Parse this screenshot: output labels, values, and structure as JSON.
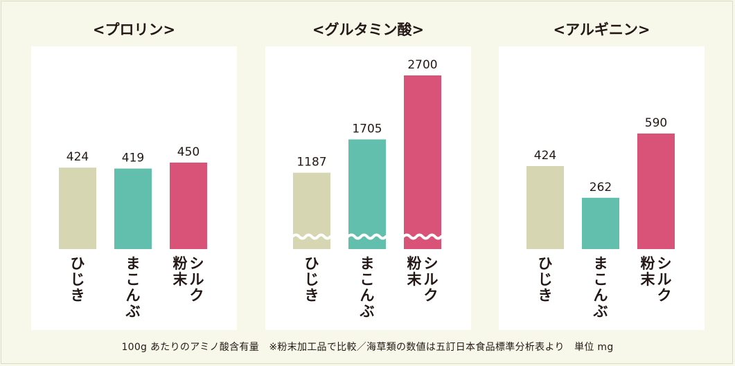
{
  "colors": {
    "background": "#f7f8ea",
    "panel": "#ffffff",
    "hijiki": "#d6d6b2",
    "makonbu": "#62bfad",
    "powder_silk": "#d95277"
  },
  "footnote": "100g あたりのアミノ酸含有量　※粉末加工品で比較／海草類の数値は五訂日本食品標準分析表より　単位 mg",
  "chart_data": [
    {
      "type": "bar",
      "title": "<プロリン>",
      "categories": [
        "ひじき",
        "まこんぶ",
        "粉末シルク"
      ],
      "category_lines": [
        [
          "ひじき"
        ],
        [
          "まこんぶ"
        ],
        [
          "シルク",
          "粉末"
        ]
      ],
      "values": [
        424,
        419,
        450
      ],
      "value_labels": [
        "424",
        "419",
        "450"
      ],
      "colors": [
        "#d6d6b2",
        "#62bfad",
        "#d95277"
      ],
      "axis_break": false
    },
    {
      "type": "bar",
      "title": "<グルタミン酸>",
      "categories": [
        "ひじき",
        "まこんぶ",
        "粉末シルク"
      ],
      "category_lines": [
        [
          "ひじき"
        ],
        [
          "まこんぶ"
        ],
        [
          "シルク",
          "粉末"
        ]
      ],
      "values": [
        1187,
        1705,
        2700
      ],
      "value_labels": [
        "1187",
        "1705",
        "2700"
      ],
      "colors": [
        "#d6d6b2",
        "#62bfad",
        "#d95277"
      ],
      "axis_break": true
    },
    {
      "type": "bar",
      "title": "<アルギニン>",
      "categories": [
        "ひじき",
        "まこんぶ",
        "粉末シルク"
      ],
      "category_lines": [
        [
          "ひじき"
        ],
        [
          "まこんぶ"
        ],
        [
          "シルク",
          "粉末"
        ]
      ],
      "values": [
        424,
        262,
        590
      ],
      "value_labels": [
        "424",
        "262",
        "590"
      ],
      "colors": [
        "#d6d6b2",
        "#62bfad",
        "#d95277"
      ],
      "axis_break": false
    }
  ]
}
